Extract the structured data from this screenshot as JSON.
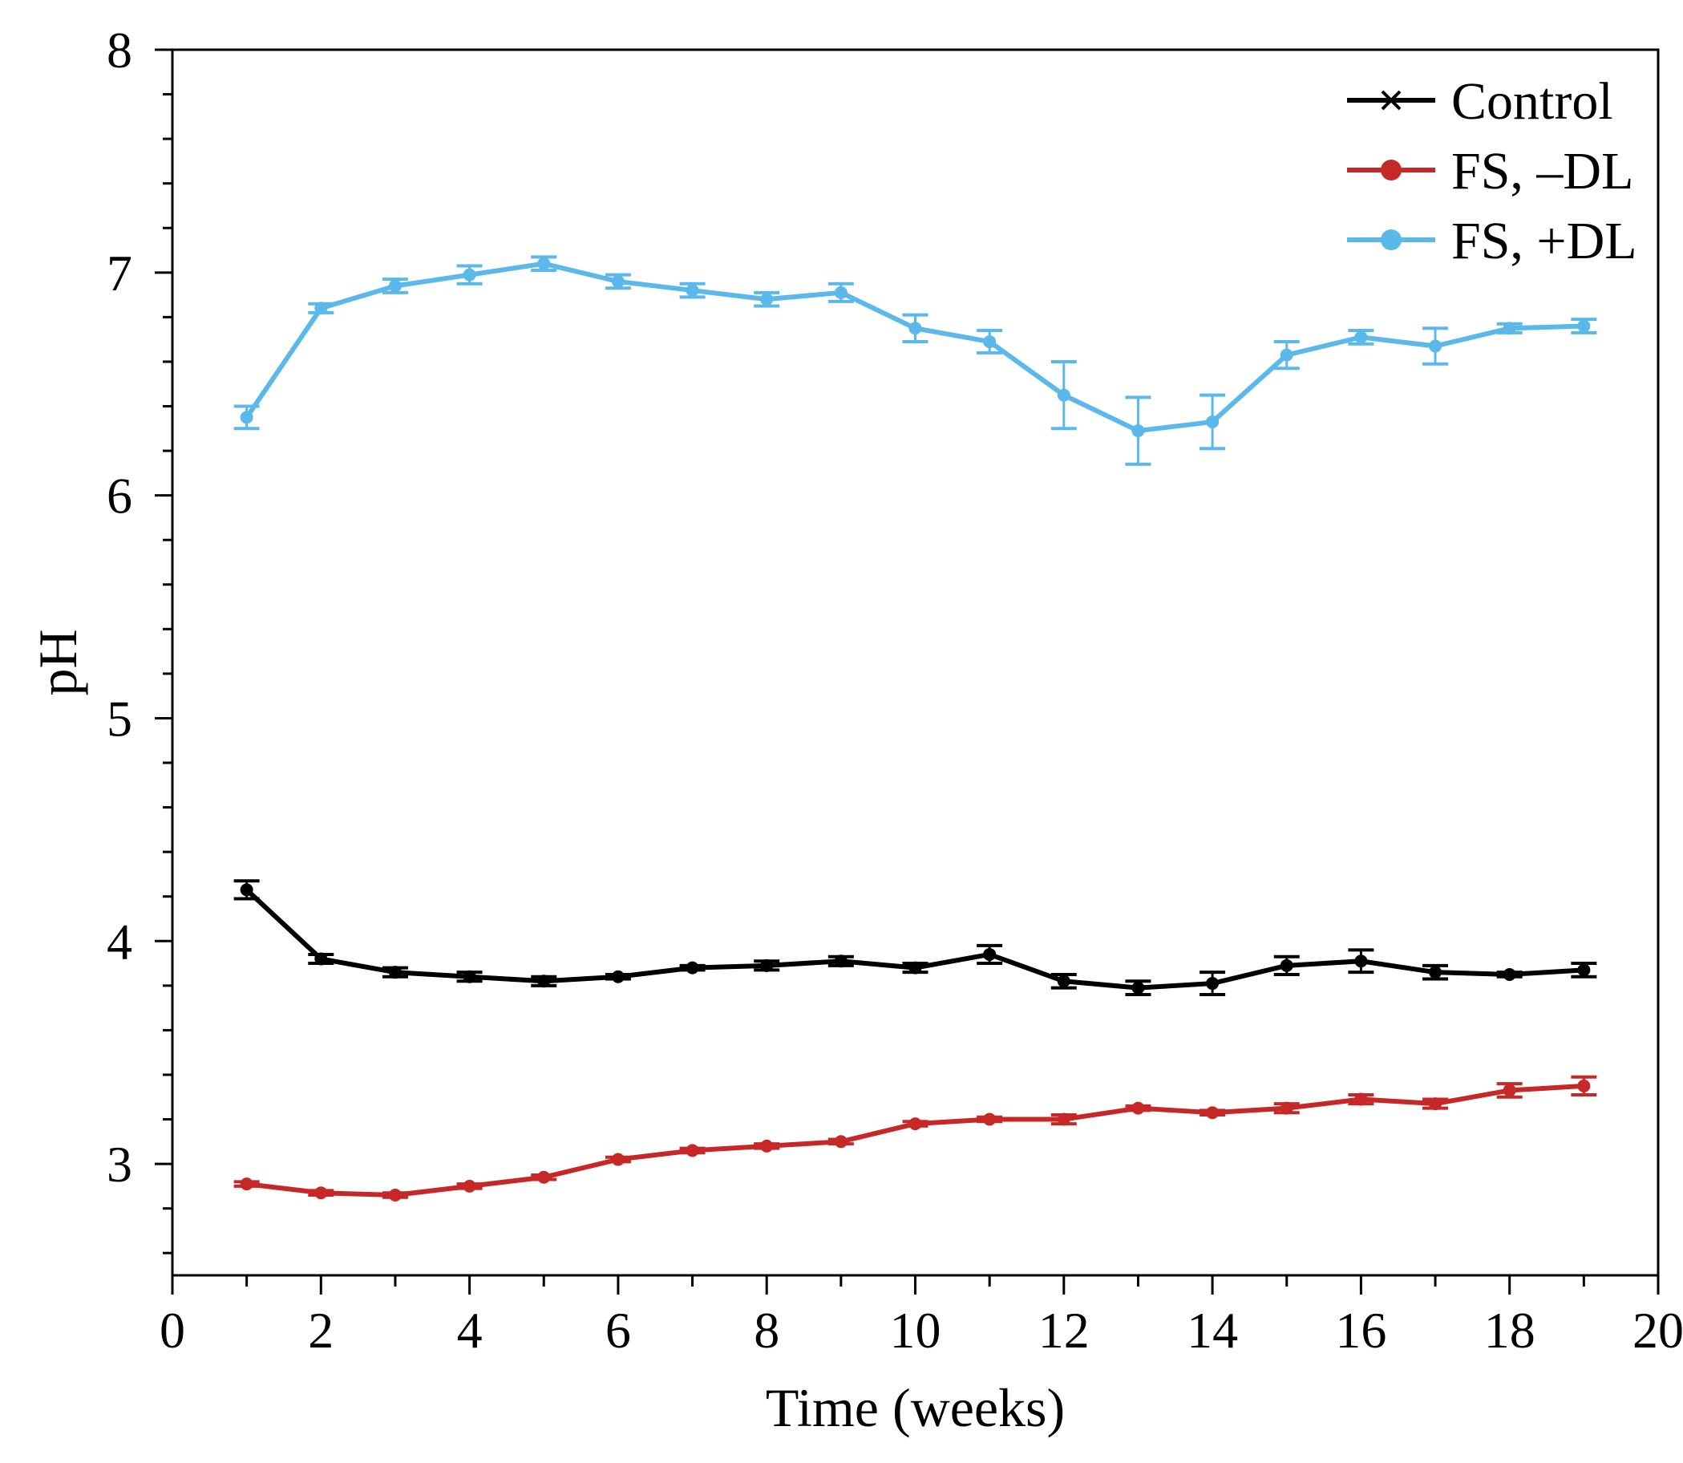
{
  "chart_data": {
    "type": "line",
    "title": "",
    "xlabel": "Time (weeks)",
    "ylabel": "pH",
    "xlim": [
      0,
      20
    ],
    "ylim": [
      2.5,
      8
    ],
    "xticks": [
      0,
      2,
      4,
      6,
      8,
      10,
      12,
      14,
      16,
      18,
      20
    ],
    "yticks": [
      3,
      4,
      5,
      6,
      7,
      8
    ],
    "grid": false,
    "legend_position": "top-right",
    "x": [
      1,
      2,
      3,
      4,
      5,
      6,
      7,
      8,
      9,
      10,
      11,
      12,
      13,
      14,
      15,
      16,
      17,
      18,
      19
    ],
    "series": [
      {
        "name": "Control",
        "color": "#000000",
        "marker": "cross",
        "values": [
          4.23,
          3.92,
          3.86,
          3.84,
          3.82,
          3.84,
          3.88,
          3.89,
          3.91,
          3.88,
          3.94,
          3.82,
          3.79,
          3.81,
          3.89,
          3.91,
          3.86,
          3.85,
          3.87
        ],
        "errors": [
          0.04,
          0.02,
          0.02,
          0.02,
          0.02,
          0.01,
          0.01,
          0.02,
          0.02,
          0.02,
          0.04,
          0.03,
          0.03,
          0.05,
          0.04,
          0.05,
          0.03,
          0.01,
          0.03
        ]
      },
      {
        "name": "FS, –DL",
        "color": "#c62828",
        "marker": "circle",
        "values": [
          2.91,
          2.87,
          2.86,
          2.9,
          2.94,
          3.02,
          3.06,
          3.08,
          3.1,
          3.18,
          3.2,
          3.2,
          3.25,
          3.23,
          3.25,
          3.29,
          3.27,
          3.33,
          3.35
        ],
        "errors": [
          0.01,
          0.01,
          0.01,
          0.01,
          0.01,
          0.01,
          0.01,
          0.01,
          0.01,
          0.01,
          0.01,
          0.02,
          0.01,
          0.01,
          0.02,
          0.02,
          0.02,
          0.03,
          0.04
        ]
      },
      {
        "name": "FS, +DL",
        "color": "#5bb8ea",
        "marker": "circle",
        "values": [
          6.35,
          6.84,
          6.94,
          6.99,
          7.04,
          6.96,
          6.92,
          6.88,
          6.91,
          6.75,
          6.69,
          6.45,
          6.29,
          6.33,
          6.63,
          6.71,
          6.67,
          6.75,
          6.76
        ],
        "errors": [
          0.05,
          0.02,
          0.03,
          0.04,
          0.03,
          0.03,
          0.03,
          0.03,
          0.04,
          0.06,
          0.05,
          0.15,
          0.15,
          0.12,
          0.06,
          0.03,
          0.08,
          0.02,
          0.03
        ]
      }
    ]
  }
}
